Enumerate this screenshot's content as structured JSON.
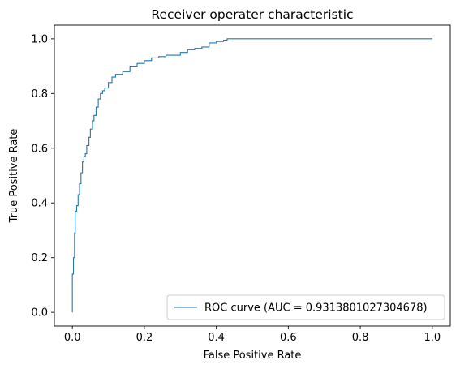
{
  "chart_data": {
    "type": "line",
    "title": "Receiver operater characteristic",
    "xlabel": "False Positive Rate",
    "ylabel": "True Positive Rate",
    "xlim": [
      -0.05,
      1.05
    ],
    "ylim": [
      -0.05,
      1.05
    ],
    "xticks": [
      0.0,
      0.2,
      0.4,
      0.6,
      0.8,
      1.0
    ],
    "xtick_labels": [
      "0.0",
      "0.2",
      "0.4",
      "0.6",
      "0.8",
      "1.0"
    ],
    "yticks": [
      0.0,
      0.2,
      0.4,
      0.6,
      0.8,
      1.0
    ],
    "ytick_labels": [
      "0.0",
      "0.2",
      "0.4",
      "0.6",
      "0.8",
      "1.0"
    ],
    "grid": false,
    "legend_position": "lower-right",
    "series": [
      {
        "name": "ROC curve (AUC = 0.9313801027304678)",
        "color": "#1f77b4",
        "x": [
          0.0,
          0.0,
          0.003,
          0.003,
          0.006,
          0.006,
          0.008,
          0.008,
          0.012,
          0.012,
          0.016,
          0.016,
          0.02,
          0.02,
          0.024,
          0.024,
          0.028,
          0.028,
          0.032,
          0.032,
          0.036,
          0.036,
          0.04,
          0.04,
          0.046,
          0.046,
          0.05,
          0.05,
          0.056,
          0.056,
          0.06,
          0.06,
          0.066,
          0.066,
          0.072,
          0.072,
          0.078,
          0.078,
          0.084,
          0.084,
          0.09,
          0.09,
          0.1,
          0.1,
          0.11,
          0.11,
          0.12,
          0.12,
          0.14,
          0.14,
          0.16,
          0.16,
          0.18,
          0.18,
          0.2,
          0.2,
          0.22,
          0.22,
          0.24,
          0.24,
          0.26,
          0.26,
          0.3,
          0.3,
          0.32,
          0.32,
          0.34,
          0.34,
          0.36,
          0.36,
          0.38,
          0.38,
          0.4,
          0.4,
          0.42,
          0.42,
          0.43,
          0.43,
          1.0
        ],
        "y": [
          0.0,
          0.14,
          0.14,
          0.2,
          0.2,
          0.29,
          0.29,
          0.37,
          0.37,
          0.39,
          0.39,
          0.43,
          0.43,
          0.47,
          0.47,
          0.51,
          0.51,
          0.55,
          0.55,
          0.57,
          0.57,
          0.58,
          0.58,
          0.61,
          0.61,
          0.64,
          0.64,
          0.67,
          0.67,
          0.7,
          0.7,
          0.72,
          0.72,
          0.75,
          0.75,
          0.78,
          0.78,
          0.8,
          0.8,
          0.81,
          0.81,
          0.82,
          0.82,
          0.84,
          0.84,
          0.86,
          0.86,
          0.87,
          0.87,
          0.88,
          0.88,
          0.9,
          0.9,
          0.91,
          0.91,
          0.92,
          0.92,
          0.93,
          0.93,
          0.935,
          0.935,
          0.94,
          0.94,
          0.95,
          0.95,
          0.96,
          0.96,
          0.965,
          0.965,
          0.97,
          0.97,
          0.985,
          0.985,
          0.99,
          0.99,
          0.995,
          0.995,
          1.0,
          1.0
        ]
      }
    ]
  }
}
